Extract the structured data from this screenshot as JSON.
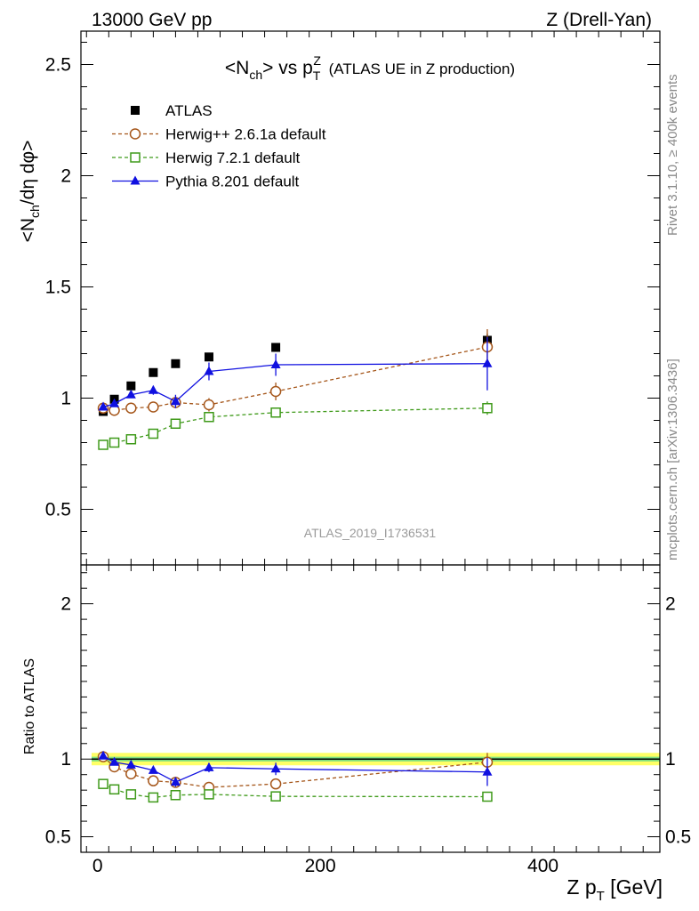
{
  "header": {
    "left": "13000 GeV pp",
    "right": "Z (Drell-Yan)"
  },
  "side": {
    "rivet": "Rivet 3.1.10, ≥ 400k events",
    "mcplots": "mcplots.cern.ch [arXiv:1306.3436]"
  },
  "watermark": "ATLAS_2019_I1736531",
  "chart_data": [
    {
      "type": "scatter",
      "title": "<N_ch> vs p_T^Z (ATLAS UE in Z production)",
      "ylabel": "<N_ch/dη dφ>",
      "xlim": [
        -15,
        505
      ],
      "ylim": [
        0.25,
        2.65
      ],
      "yticks": [
        0.5,
        1,
        1.5,
        2,
        2.5
      ],
      "ytick_labels": [
        "0.5",
        "1",
        "1.5",
        "2",
        "2.5"
      ],
      "legend_position": "top-left",
      "series": [
        {
          "name": "ATLAS",
          "color": "#000000",
          "marker": "filled-square",
          "x": [
            5,
            15,
            30,
            50,
            70,
            100,
            160,
            350
          ],
          "y": [
            0.94,
            0.995,
            1.055,
            1.115,
            1.155,
            1.185,
            1.228,
            1.26
          ],
          "yerr": [
            0.01,
            0.01,
            0.01,
            0.01,
            0.01,
            0.015,
            0.02,
            0.03
          ]
        },
        {
          "name": "Herwig++ 2.6.1a default",
          "color": "#a5561a",
          "marker": "open-circle",
          "dash": "dashed",
          "x": [
            5,
            15,
            30,
            50,
            70,
            100,
            160,
            350
          ],
          "y": [
            0.955,
            0.945,
            0.955,
            0.96,
            0.98,
            0.97,
            1.03,
            1.23
          ],
          "yerr": [
            0.01,
            0.01,
            0.01,
            0.01,
            0.02,
            0.03,
            0.04,
            0.08
          ]
        },
        {
          "name": "Herwig 7.2.1 default",
          "color": "#3f9a1a",
          "marker": "open-square",
          "dash": "dashed",
          "x": [
            5,
            15,
            30,
            50,
            70,
            100,
            160,
            350
          ],
          "y": [
            0.79,
            0.8,
            0.815,
            0.84,
            0.885,
            0.915,
            0.935,
            0.955
          ],
          "yerr": [
            0.01,
            0.01,
            0.01,
            0.01,
            0.01,
            0.015,
            0.015,
            0.03
          ]
        },
        {
          "name": "Pythia 8.201 default",
          "color": "#1010e0",
          "marker": "filled-triangle",
          "dash": "solid",
          "x": [
            5,
            15,
            30,
            50,
            70,
            100,
            160,
            350
          ],
          "y": [
            0.96,
            0.975,
            1.015,
            1.035,
            0.985,
            1.12,
            1.15,
            1.155
          ],
          "yerr": [
            0.01,
            0.01,
            0.015,
            0.02,
            0.03,
            0.04,
            0.05,
            0.12
          ]
        }
      ]
    },
    {
      "type": "scatter",
      "ylabel": "Ratio to ATLAS",
      "xlabel": "Z p_T [GeV]",
      "xlim": [
        -15,
        505
      ],
      "xticks": [
        0,
        200,
        400
      ],
      "xtick_labels": [
        "0",
        "200",
        "400"
      ],
      "ylim": [
        0.4,
        2.25
      ],
      "yticks": [
        0.5,
        1,
        2
      ],
      "ytick_labels": [
        "0.5",
        "1",
        "2"
      ],
      "reference_band": {
        "inner": [
          0.985,
          1.015
        ],
        "outer": [
          0.96,
          1.04
        ],
        "inner_color": "#7fe07f",
        "outer_color": "#ffff66"
      },
      "series": [
        {
          "name": "Herwig++ 2.6.1a default",
          "color": "#a5561a",
          "marker": "open-circle",
          "dash": "dashed",
          "x": [
            5,
            15,
            30,
            50,
            70,
            100,
            160,
            350
          ],
          "y": [
            1.015,
            0.95,
            0.905,
            0.86,
            0.85,
            0.818,
            0.84,
            0.98
          ],
          "yerr": [
            0.01,
            0.01,
            0.01,
            0.01,
            0.015,
            0.02,
            0.03,
            0.06
          ]
        },
        {
          "name": "Herwig 7.2.1 default",
          "color": "#3f9a1a",
          "marker": "open-square",
          "dash": "dashed",
          "x": [
            5,
            15,
            30,
            50,
            70,
            100,
            160,
            350
          ],
          "y": [
            0.84,
            0.805,
            0.773,
            0.753,
            0.768,
            0.773,
            0.76,
            0.758
          ],
          "yerr": [
            0.01,
            0.01,
            0.01,
            0.01,
            0.01,
            0.01,
            0.01,
            0.02
          ]
        },
        {
          "name": "Pythia 8.201 default",
          "color": "#1010e0",
          "marker": "filled-triangle",
          "dash": "solid",
          "x": [
            5,
            15,
            30,
            50,
            70,
            100,
            160,
            350
          ],
          "y": [
            1.02,
            0.98,
            0.962,
            0.928,
            0.852,
            0.945,
            0.937,
            0.917
          ],
          "yerr": [
            0.01,
            0.01,
            0.015,
            0.02,
            0.03,
            0.03,
            0.04,
            0.09
          ]
        }
      ]
    }
  ]
}
